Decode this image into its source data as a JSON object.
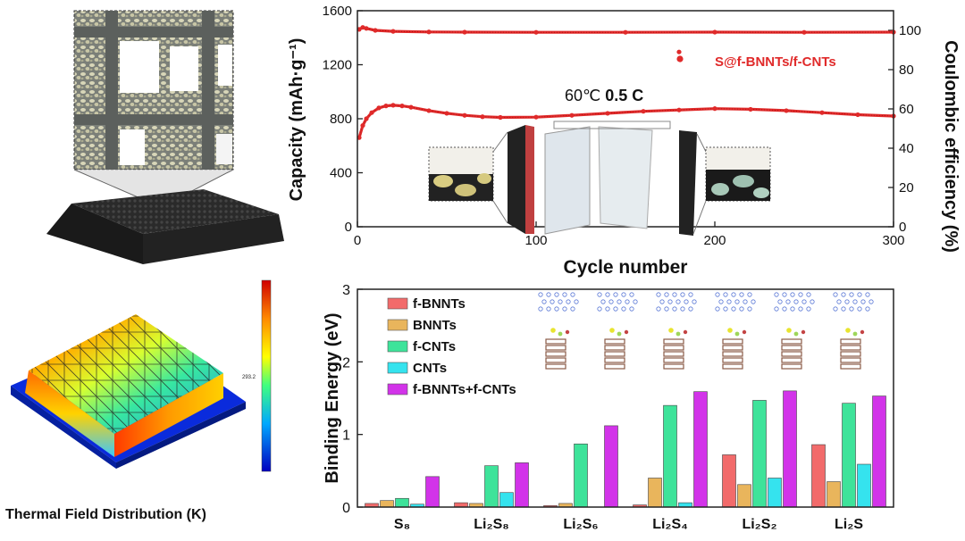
{
  "thermal_panel": {
    "caption": "Thermal Field Distribution (K)",
    "colorbar_tick": "293.2"
  },
  "chart_data": [
    {
      "type": "scatter",
      "title": "",
      "xlabel": "Cycle number",
      "ylabel": "Capacity (mAh·g⁻¹)",
      "y2label": "Coulombic efficiency (%)",
      "xlim": [
        0,
        300
      ],
      "ylim": [
        0,
        1600
      ],
      "y2lim": [
        0,
        110
      ],
      "x_ticks": [
        "0",
        "100",
        "200",
        "300"
      ],
      "y_ticks": [
        "0",
        "400",
        "800",
        "1200",
        "1600"
      ],
      "y2_ticks": [
        "0",
        "20",
        "40",
        "60",
        "80",
        "100"
      ],
      "legend": "S@f-BNNTs/f-CNTs",
      "annotation_prefix": "60℃ ",
      "annotation_rate": "0.5 C",
      "accent_color": "#e02a2a",
      "series": [
        {
          "name": "S@f-BNNTs/f-CNTs",
          "axis": "capacity",
          "x": [
            1,
            3,
            5,
            8,
            12,
            16,
            20,
            25,
            30,
            40,
            50,
            60,
            70,
            80,
            100,
            120,
            140,
            160,
            180,
            200,
            220,
            240,
            260,
            280,
            300
          ],
          "y": [
            660,
            750,
            800,
            845,
            880,
            895,
            900,
            895,
            885,
            860,
            840,
            825,
            815,
            810,
            812,
            825,
            840,
            855,
            865,
            875,
            870,
            860,
            845,
            830,
            820
          ]
        },
        {
          "name": "Coulombic efficiency",
          "axis": "efficiency",
          "x": [
            1,
            3,
            5,
            10,
            20,
            40,
            60,
            100,
            150,
            200,
            250,
            300
          ],
          "y": [
            100.5,
            101.5,
            101,
            100,
            99.5,
            99.2,
            99.1,
            99.0,
            99.0,
            99.1,
            99.0,
            99.1
          ]
        },
        {
          "name": "outlier",
          "axis": "efficiency",
          "x": [
            180
          ],
          "y": [
            89
          ]
        }
      ]
    },
    {
      "type": "bar",
      "title": "",
      "xlabel": "",
      "ylabel": "Binding Energy (eV)",
      "ylim": [
        0,
        3
      ],
      "y_ticks": [
        "0",
        "1",
        "2",
        "3"
      ],
      "categories": [
        "S₈",
        "Li₂S₈",
        "Li₂S₆",
        "Li₂S₄",
        "Li₂S₂",
        "Li₂S"
      ],
      "legend_position": "top-left",
      "series": [
        {
          "name": "f-BNNTs",
          "color": "#f26b6b",
          "values": [
            0.05,
            0.06,
            0.02,
            0.03,
            0.72,
            0.86
          ]
        },
        {
          "name": "BNNTs",
          "color": "#e9b55c",
          "values": [
            0.09,
            0.05,
            0.05,
            0.4,
            0.31,
            0.35
          ]
        },
        {
          "name": "f-CNTs",
          "color": "#3ee39a",
          "values": [
            0.12,
            0.57,
            0.87,
            1.4,
            1.47,
            1.43
          ]
        },
        {
          "name": "CNTs",
          "color": "#35e3ee",
          "values": [
            0.04,
            0.2,
            0.0,
            0.06,
            0.4,
            0.59
          ]
        },
        {
          "name": "f-BNNTs+f-CNTs",
          "color": "#d233e9",
          "values": [
            0.42,
            0.61,
            1.12,
            1.59,
            1.6,
            1.53
          ]
        }
      ]
    }
  ]
}
